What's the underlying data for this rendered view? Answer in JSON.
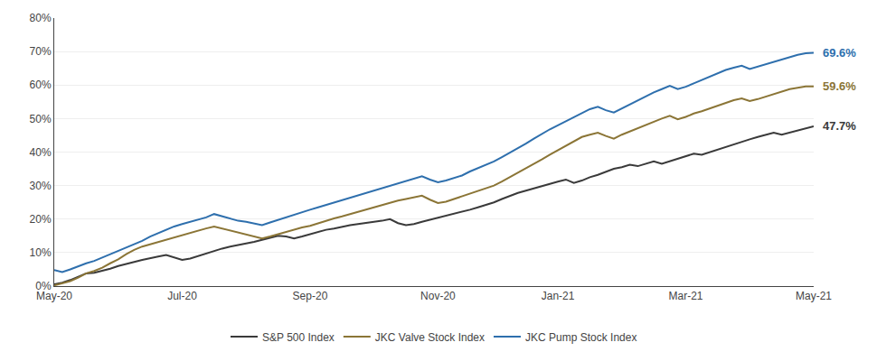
{
  "chart_data": {
    "type": "line",
    "categories": [
      "May-20",
      null,
      null,
      null,
      null,
      null,
      null,
      null,
      null,
      null,
      null,
      null,
      null,
      null,
      null,
      null,
      "Jul-20",
      null,
      null,
      null,
      null,
      null,
      null,
      null,
      null,
      null,
      null,
      null,
      null,
      null,
      null,
      null,
      "Sep-20",
      null,
      null,
      null,
      null,
      null,
      null,
      null,
      null,
      null,
      null,
      null,
      null,
      null,
      null,
      null,
      "Nov-20",
      null,
      null,
      null,
      null,
      null,
      null,
      null,
      null,
      null,
      null,
      null,
      null,
      null,
      null,
      "Jan-21",
      null,
      null,
      null,
      null,
      null,
      null,
      null,
      null,
      null,
      null,
      null,
      null,
      null,
      null,
      null,
      "Mar-21",
      null,
      null,
      null,
      null,
      null,
      null,
      null,
      null,
      null,
      null,
      null,
      null,
      null,
      null,
      null,
      "May-21"
    ],
    "series": [
      {
        "name": "S&P 500 Index",
        "color": "#3a3a3a",
        "values": [
          0.005,
          0.01,
          0.018,
          0.028,
          0.038,
          0.04,
          0.045,
          0.052,
          0.06,
          0.065,
          0.072,
          0.078,
          0.082,
          0.088,
          0.093,
          0.085,
          0.078,
          0.082,
          0.09,
          0.098,
          0.106,
          0.112,
          0.118,
          0.122,
          0.128,
          0.132,
          0.138,
          0.145,
          0.15,
          0.148,
          0.142,
          0.148,
          0.155,
          0.162,
          0.168,
          0.172,
          0.178,
          0.182,
          0.185,
          0.188,
          0.192,
          0.195,
          0.2,
          0.188,
          0.182,
          0.185,
          0.192,
          0.198,
          0.202,
          0.208,
          0.215,
          0.22,
          0.228,
          0.235,
          0.242,
          0.25,
          0.26,
          0.27,
          0.278,
          0.285,
          0.292,
          0.3,
          0.305,
          0.312,
          0.318,
          0.308,
          0.315,
          0.325,
          0.332,
          0.34,
          0.35,
          0.355,
          0.362,
          0.358,
          0.365,
          0.372,
          0.365,
          0.372,
          0.38,
          0.388,
          0.395,
          0.392,
          0.4,
          0.408,
          0.415,
          0.422,
          0.43,
          0.438,
          0.445,
          0.452,
          0.458,
          0.452,
          0.458,
          0.465,
          0.472,
          0.477
        ]
      },
      {
        "name": "JKC Valve Stock Index",
        "color": "#8B7536",
        "values": [
          0.002,
          0.008,
          0.015,
          0.025,
          0.038,
          0.045,
          0.055,
          0.068,
          0.08,
          0.095,
          0.108,
          0.118,
          0.125,
          0.13,
          0.138,
          0.145,
          0.152,
          0.158,
          0.165,
          0.172,
          0.178,
          0.172,
          0.165,
          0.158,
          0.152,
          0.148,
          0.142,
          0.148,
          0.155,
          0.162,
          0.168,
          0.175,
          0.18,
          0.188,
          0.195,
          0.202,
          0.208,
          0.215,
          0.22,
          0.228,
          0.235,
          0.242,
          0.248,
          0.255,
          0.26,
          0.265,
          0.27,
          0.258,
          0.248,
          0.252,
          0.26,
          0.268,
          0.278,
          0.285,
          0.292,
          0.3,
          0.312,
          0.325,
          0.338,
          0.35,
          0.365,
          0.378,
          0.392,
          0.405,
          0.418,
          0.432,
          0.445,
          0.452,
          0.458,
          0.448,
          0.44,
          0.452,
          0.462,
          0.472,
          0.482,
          0.492,
          0.5,
          0.508,
          0.498,
          0.505,
          0.515,
          0.522,
          0.53,
          0.54,
          0.548,
          0.555,
          0.56,
          0.552,
          0.558,
          0.565,
          0.572,
          0.58,
          0.588,
          0.592,
          0.596,
          0.596
        ]
      },
      {
        "name": "JKC Pump Stock Index",
        "color": "#2e6fad",
        "values": [
          0.048,
          0.042,
          0.05,
          0.06,
          0.068,
          0.075,
          0.085,
          0.095,
          0.105,
          0.115,
          0.125,
          0.135,
          0.148,
          0.158,
          0.168,
          0.178,
          0.185,
          0.192,
          0.198,
          0.205,
          0.215,
          0.208,
          0.2,
          0.195,
          0.192,
          0.188,
          0.182,
          0.19,
          0.198,
          0.205,
          0.212,
          0.22,
          0.228,
          0.235,
          0.242,
          0.25,
          0.258,
          0.265,
          0.272,
          0.278,
          0.285,
          0.292,
          0.298,
          0.305,
          0.312,
          0.32,
          0.328,
          0.318,
          0.31,
          0.315,
          0.322,
          0.33,
          0.342,
          0.352,
          0.362,
          0.372,
          0.385,
          0.398,
          0.412,
          0.425,
          0.44,
          0.455,
          0.468,
          0.48,
          0.492,
          0.505,
          0.518,
          0.528,
          0.535,
          0.525,
          0.518,
          0.53,
          0.542,
          0.555,
          0.565,
          0.578,
          0.588,
          0.598,
          0.588,
          0.595,
          0.605,
          0.615,
          0.625,
          0.635,
          0.645,
          0.652,
          0.658,
          0.648,
          0.655,
          0.662,
          0.67,
          0.678,
          0.685,
          0.69,
          0.695,
          0.696
        ]
      }
    ],
    "ylim": [
      0.0,
      0.8
    ],
    "yticks": [
      {
        "value": 0.0,
        "label": "0%"
      },
      {
        "value": 0.1,
        "label": "10%"
      },
      {
        "value": 0.2,
        "label": "20%"
      },
      {
        "value": 0.3,
        "label": "30%"
      },
      {
        "value": 0.4,
        "label": "40%"
      },
      {
        "value": 0.5,
        "label": "50%"
      },
      {
        "value": 0.6,
        "label": "60%"
      },
      {
        "value": 0.7,
        "label": "70%"
      },
      {
        "value": 0.8,
        "label": "80%"
      }
    ],
    "annotations": [
      {
        "text": "69.6%",
        "color": "#2e6fad",
        "y": 0.696
      },
      {
        "text": "59.6%",
        "color": "#8B7536",
        "y": 0.596
      },
      {
        "text": "47.7%",
        "color": "#3a3a3a",
        "y": 0.477
      }
    ],
    "grid": true,
    "legend": "bottom"
  }
}
